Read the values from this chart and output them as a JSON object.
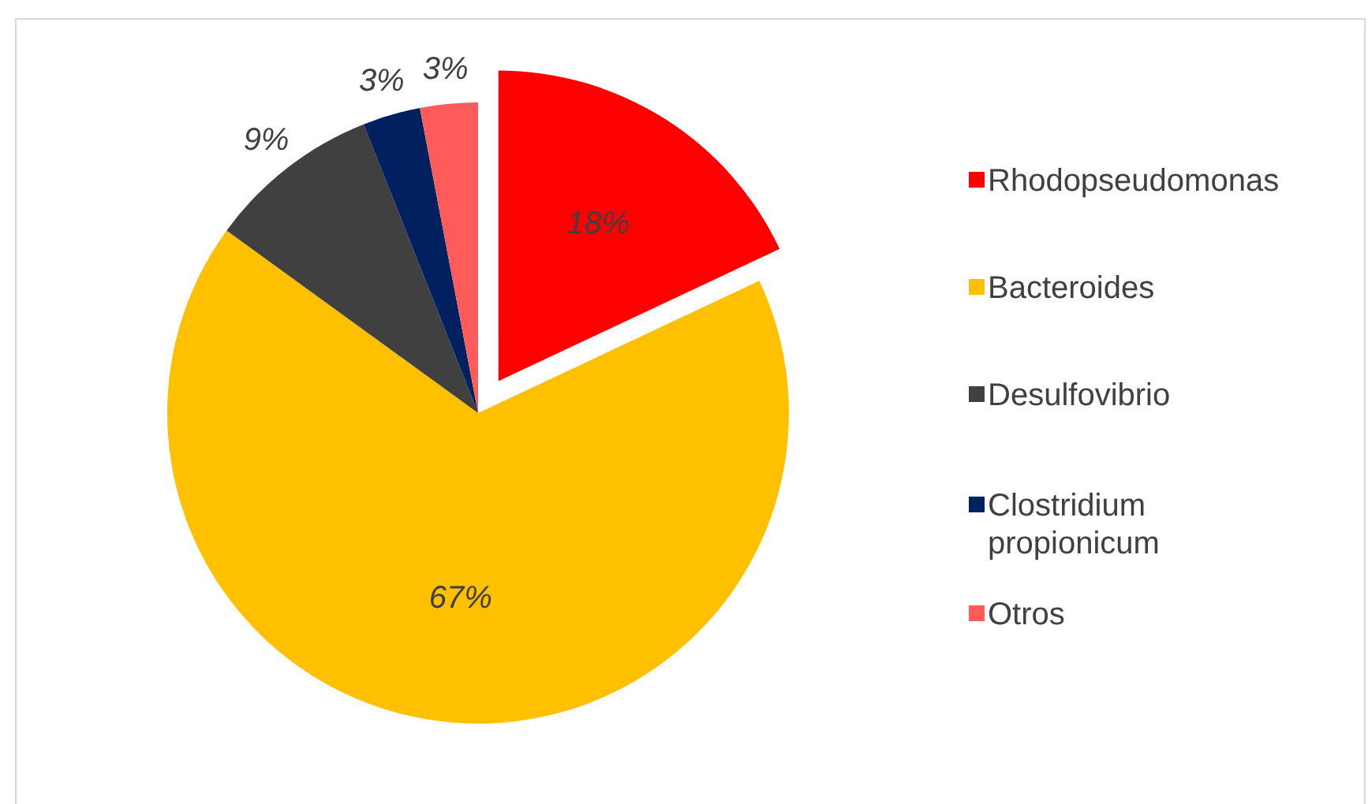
{
  "chart_data": {
    "type": "pie",
    "categories": [
      "Rhodopseudomonas",
      "Bacteroides",
      "Desulfovibrio",
      "Clostridium propionicum",
      "Otros"
    ],
    "values": [
      18,
      67,
      9,
      3,
      3
    ],
    "colors": [
      "#ff0000",
      "#ffc000",
      "#404040",
      "#002060",
      "#ff5b5b"
    ],
    "value_labels": [
      "18%",
      "67%",
      "9%",
      "3%",
      "3%"
    ],
    "legend": "right"
  }
}
